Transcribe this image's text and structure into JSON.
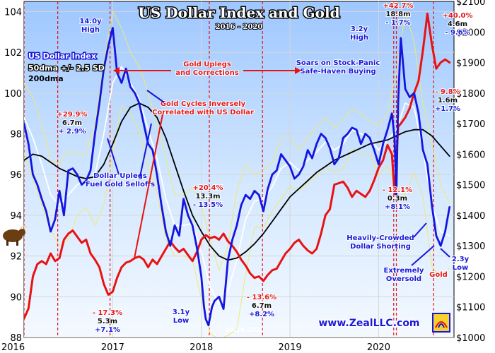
{
  "chart_data": {
    "type": "line",
    "title": "US Dollar Index and Gold",
    "subtitle": "2016 - 2020",
    "x_ticks": [
      "2016",
      "2017",
      "2018",
      "2019",
      "2020"
    ],
    "y_left_ticks": [
      "88",
      "90",
      "92",
      "94",
      "96",
      "98",
      "100",
      "102",
      "104"
    ],
    "y_right_ticks": [
      "$1000",
      "$1100",
      "$1200",
      "$1300",
      "$1400",
      "$1500",
      "$1600",
      "$1700",
      "$1800",
      "$1900",
      "$2000",
      "$2100"
    ],
    "ylim_left": [
      88,
      104.5
    ],
    "ylim_right": [
      1000,
      2100
    ],
    "xlim": [
      2016.0,
      2020.85
    ],
    "legend": {
      "label": "US Dollar Index",
      "band": "50dma +/- 2.5 SD",
      "ma": "200dma"
    },
    "series": [
      {
        "name": "US Dollar Index",
        "axis": "left",
        "color": "#1515e0",
        "x": [
          2016.0,
          2016.05,
          2016.1,
          2016.15,
          2016.2,
          2016.25,
          2016.3,
          2016.35,
          2016.4,
          2016.45,
          2016.5,
          2016.55,
          2016.6,
          2016.65,
          2016.7,
          2016.75,
          2016.8,
          2016.85,
          2016.9,
          2016.95,
          2017.0,
          2017.05,
          2017.1,
          2017.15,
          2017.2,
          2017.25,
          2017.3,
          2017.35,
          2017.4,
          2017.45,
          2017.5,
          2017.55,
          2017.6,
          2017.65,
          2017.7,
          2017.75,
          2017.8,
          2017.85,
          2017.9,
          2017.95,
          2018.0,
          2018.03,
          2018.05,
          2018.08,
          2018.12,
          2018.15,
          2018.2,
          2018.25,
          2018.3,
          2018.35,
          2018.4,
          2018.45,
          2018.5,
          2018.55,
          2018.6,
          2018.65,
          2018.7,
          2018.75,
          2018.8,
          2018.85,
          2018.9,
          2018.95,
          2019.0,
          2019.05,
          2019.1,
          2019.15,
          2019.2,
          2019.25,
          2019.3,
          2019.35,
          2019.4,
          2019.45,
          2019.5,
          2019.55,
          2019.6,
          2019.65,
          2019.7,
          2019.75,
          2019.8,
          2019.85,
          2019.9,
          2019.95,
          2020.0,
          2020.05,
          2020.1,
          2020.15,
          2020.18,
          2020.2,
          2020.22,
          2020.25,
          2020.3,
          2020.35,
          2020.4,
          2020.45,
          2020.5,
          2020.55,
          2020.6,
          2020.65,
          2020.7,
          2020.75,
          2020.8
        ],
        "y": [
          98.5,
          97.5,
          96.0,
          95.5,
          94.8,
          94.2,
          93.2,
          93.8,
          95.2,
          94.0,
          96.2,
          96.3,
          96.0,
          95.5,
          95.7,
          96.2,
          98.0,
          99.5,
          101.2,
          102.3,
          103.2,
          101.0,
          100.5,
          101.2,
          100.3,
          100.0,
          99.5,
          98.5,
          97.5,
          97.2,
          96.0,
          94.5,
          93.2,
          92.5,
          93.5,
          93.0,
          94.8,
          94.0,
          93.5,
          92.4,
          91.0,
          89.5,
          88.9,
          88.6,
          89.5,
          89.8,
          90.0,
          89.4,
          91.8,
          92.8,
          93.5,
          94.5,
          95.0,
          94.8,
          95.2,
          95.0,
          94.2,
          95.3,
          96.0,
          96.2,
          97.0,
          96.7,
          96.4,
          95.8,
          96.0,
          96.4,
          97.2,
          96.8,
          97.5,
          98.0,
          97.8,
          97.3,
          96.5,
          96.8,
          97.8,
          98.0,
          98.3,
          98.2,
          97.5,
          98.0,
          97.8,
          97.2,
          96.5,
          97.5,
          98.2,
          99.0,
          97.8,
          95.0,
          99.5,
          102.7,
          100.2,
          99.8,
          100.0,
          99.0,
          97.2,
          96.5,
          94.5,
          93.0,
          92.5,
          93.2,
          94.4
        ]
      },
      {
        "name": "Gold",
        "axis": "right",
        "color": "#e81212",
        "x": [
          2016.0,
          2016.05,
          2016.1,
          2016.15,
          2016.2,
          2016.25,
          2016.3,
          2016.35,
          2016.4,
          2016.45,
          2016.5,
          2016.55,
          2016.6,
          2016.65,
          2016.7,
          2016.75,
          2016.8,
          2016.85,
          2016.9,
          2016.95,
          2017.0,
          2017.05,
          2017.1,
          2017.15,
          2017.2,
          2017.25,
          2017.3,
          2017.35,
          2017.4,
          2017.45,
          2017.5,
          2017.55,
          2017.6,
          2017.65,
          2017.7,
          2017.75,
          2017.8,
          2017.85,
          2017.9,
          2017.95,
          2018.0,
          2018.05,
          2018.1,
          2018.15,
          2018.2,
          2018.25,
          2018.3,
          2018.35,
          2018.4,
          2018.45,
          2018.5,
          2018.55,
          2018.6,
          2018.65,
          2018.7,
          2018.75,
          2018.8,
          2018.85,
          2018.9,
          2018.95,
          2019.0,
          2019.05,
          2019.1,
          2019.15,
          2019.2,
          2019.25,
          2019.3,
          2019.35,
          2019.4,
          2019.45,
          2019.5,
          2019.55,
          2019.6,
          2019.65,
          2019.7,
          2019.75,
          2019.8,
          2019.85,
          2019.9,
          2019.95,
          2020.0,
          2020.05,
          2020.1,
          2020.15,
          2020.18,
          2020.2,
          2020.22,
          2020.25,
          2020.3,
          2020.35,
          2020.4,
          2020.45,
          2020.5,
          2020.55,
          2020.6,
          2020.65,
          2020.7,
          2020.75,
          2020.8
        ],
        "y": [
          1062,
          1095,
          1200,
          1240,
          1250,
          1240,
          1275,
          1250,
          1260,
          1320,
          1340,
          1350,
          1330,
          1310,
          1320,
          1275,
          1255,
          1230,
          1175,
          1140,
          1150,
          1195,
          1230,
          1245,
          1250,
          1260,
          1265,
          1255,
          1230,
          1255,
          1240,
          1265,
          1290,
          1315,
          1295,
          1280,
          1290,
          1270,
          1250,
          1280,
          1320,
          1335,
          1325,
          1330,
          1320,
          1340,
          1315,
          1300,
          1280,
          1255,
          1235,
          1210,
          1195,
          1200,
          1185,
          1205,
          1220,
          1225,
          1250,
          1275,
          1290,
          1310,
          1320,
          1300,
          1285,
          1275,
          1290,
          1340,
          1400,
          1420,
          1500,
          1505,
          1510,
          1490,
          1460,
          1480,
          1470,
          1460,
          1480,
          1515,
          1555,
          1580,
          1630,
          1600,
          1470,
          1580,
          1690,
          1700,
          1720,
          1750,
          1800,
          1840,
          1940,
          2060,
          1960,
          1880,
          1900,
          1910,
          1900
        ]
      },
      {
        "name": "50dma",
        "axis": "left",
        "color": "#ffffff",
        "x": [
          2016.0,
          2016.1,
          2016.2,
          2016.3,
          2016.4,
          2016.5,
          2016.6,
          2016.7,
          2016.8,
          2016.9,
          2017.0,
          2017.1,
          2017.2,
          2017.3,
          2017.4,
          2017.5,
          2017.6,
          2017.7,
          2017.8,
          2017.9,
          2018.0,
          2018.1,
          2018.2,
          2018.3,
          2018.4,
          2018.5,
          2018.6,
          2018.7,
          2018.8,
          2018.9,
          2019.0,
          2019.1,
          2019.2,
          2019.3,
          2019.4,
          2019.5,
          2019.6,
          2019.7,
          2019.8,
          2019.9,
          2020.0,
          2020.1,
          2020.2,
          2020.3,
          2020.4,
          2020.5,
          2020.6,
          2020.7,
          2020.8
        ],
        "y": [
          98.8,
          97.8,
          96.5,
          95.0,
          94.5,
          95.0,
          95.5,
          95.7,
          96.0,
          98.0,
          100.5,
          101.3,
          100.5,
          99.7,
          98.2,
          96.8,
          94.8,
          93.5,
          93.5,
          93.6,
          92.2,
          90.5,
          89.6,
          90.3,
          91.8,
          93.8,
          94.7,
          94.8,
          95.4,
          96.3,
          96.6,
          96.2,
          96.7,
          97.1,
          97.6,
          97.2,
          97.5,
          98.2,
          98.0,
          97.8,
          97.2,
          97.7,
          98.2,
          99.5,
          99.3,
          97.2,
          94.5,
          93.2,
          93.0
        ]
      },
      {
        "name": "200dma",
        "axis": "left",
        "color": "#000000",
        "x": [
          2016.0,
          2016.1,
          2016.2,
          2016.3,
          2016.4,
          2016.5,
          2016.6,
          2016.7,
          2016.8,
          2016.9,
          2017.0,
          2017.1,
          2017.2,
          2017.3,
          2017.4,
          2017.5,
          2017.6,
          2017.7,
          2017.8,
          2017.9,
          2018.0,
          2018.1,
          2018.2,
          2018.3,
          2018.4,
          2018.5,
          2018.6,
          2018.7,
          2018.8,
          2018.9,
          2019.0,
          2019.1,
          2019.2,
          2019.3,
          2019.4,
          2019.5,
          2019.6,
          2019.7,
          2019.8,
          2019.9,
          2020.0,
          2020.1,
          2020.2,
          2020.3,
          2020.4,
          2020.5,
          2020.6,
          2020.7,
          2020.8
        ],
        "y": [
          96.7,
          97.0,
          96.9,
          96.6,
          96.3,
          96.1,
          95.9,
          95.8,
          95.9,
          96.5,
          97.5,
          98.6,
          99.3,
          99.5,
          99.3,
          98.8,
          97.8,
          96.5,
          95.2,
          94.0,
          93.2,
          92.5,
          92.0,
          91.8,
          91.9,
          92.2,
          92.6,
          93.1,
          93.7,
          94.3,
          94.9,
          95.3,
          95.7,
          96.1,
          96.4,
          96.7,
          96.9,
          97.1,
          97.3,
          97.5,
          97.6,
          97.7,
          97.9,
          98.1,
          98.2,
          98.2,
          97.9,
          97.4,
          96.9
        ]
      },
      {
        "name": "Upper band",
        "axis": "left",
        "color": "#f0e872",
        "x": [
          2016.0,
          2016.1,
          2016.2,
          2016.3,
          2016.4,
          2016.5,
          2016.6,
          2016.7,
          2016.8,
          2016.9,
          2017.0,
          2017.1,
          2017.2,
          2017.3,
          2017.4,
          2017.5,
          2017.6,
          2017.7,
          2017.8,
          2017.9,
          2018.0,
          2018.1,
          2018.2,
          2018.3,
          2018.4,
          2018.5,
          2018.6,
          2018.7,
          2018.8,
          2018.9,
          2019.0,
          2019.1,
          2019.2,
          2019.3,
          2019.4,
          2019.5,
          2019.6,
          2019.7,
          2019.8,
          2019.9,
          2020.0,
          2020.1,
          2020.2,
          2020.3,
          2020.4,
          2020.5,
          2020.6,
          2020.7,
          2020.8
        ],
        "y": [
          100.5,
          99.8,
          98.5,
          96.7,
          96.5,
          97.2,
          97.0,
          97.0,
          98.5,
          101.5,
          104.0,
          103.2,
          102.0,
          101.3,
          100.0,
          98.5,
          96.8,
          95.0,
          95.0,
          95.4,
          94.5,
          92.8,
          91.3,
          92.5,
          95.2,
          96.5,
          96.0,
          96.2,
          96.6,
          97.8,
          97.8,
          97.2,
          97.8,
          98.3,
          98.8,
          98.3,
          98.7,
          99.2,
          99.0,
          98.6,
          98.4,
          99.0,
          101.0,
          104.0,
          102.5,
          99.5,
          97.5,
          95.5,
          94.6
        ]
      },
      {
        "name": "Lower band",
        "axis": "left",
        "color": "#f0e872",
        "x": [
          2016.0,
          2016.1,
          2016.2,
          2016.3,
          2016.4,
          2016.5,
          2016.6,
          2016.7,
          2016.8,
          2016.9,
          2017.0,
          2017.1,
          2017.2,
          2017.3,
          2017.4,
          2017.5,
          2017.6,
          2017.7,
          2017.8,
          2017.9,
          2018.0,
          2018.1,
          2018.2,
          2018.3,
          2018.4,
          2018.5,
          2018.6,
          2018.7,
          2018.8,
          2018.9,
          2019.0,
          2019.1,
          2019.2,
          2019.3,
          2019.4,
          2019.5,
          2019.6,
          2019.7,
          2019.8,
          2019.9,
          2020.0,
          2020.1,
          2020.2,
          2020.3,
          2020.4,
          2020.5,
          2020.6,
          2020.7,
          2020.8
        ],
        "y": [
          97.0,
          95.8,
          94.5,
          93.3,
          92.5,
          92.8,
          94.0,
          94.4,
          93.5,
          94.5,
          97.0,
          99.4,
          99.0,
          98.1,
          96.4,
          95.1,
          92.8,
          92.0,
          92.0,
          91.8,
          89.9,
          88.2,
          87.9,
          88.1,
          88.4,
          91.1,
          93.4,
          93.4,
          94.2,
          94.8,
          95.4,
          95.2,
          95.6,
          95.9,
          96.4,
          96.1,
          96.3,
          97.2,
          97.0,
          97.0,
          96.0,
          96.4,
          95.4,
          95.0,
          96.1,
          94.9,
          91.5,
          90.9,
          91.4
        ]
      }
    ],
    "vlines": [
      2016.0,
      2016.38,
      2016.97,
      2018.09,
      2018.69,
      2020.17,
      2020.2,
      2020.62
    ],
    "annotations": [
      {
        "id": "gold-uplegs",
        "text": [
          "Gold Uplegs",
          "and Corrections"
        ],
        "color": "red"
      },
      {
        "id": "gold-cycles",
        "text": [
          "Gold Cycles Inversely",
          "Correlated with US Dollar"
        ],
        "color": "red"
      },
      {
        "id": "dollar-uplegs",
        "text": [
          "Dollar Uplegs",
          "Fuel Gold Selloffs"
        ],
        "color": "blue"
      },
      {
        "id": "high-2016",
        "text": [
          "14.0y",
          "High"
        ],
        "color": "blue"
      },
      {
        "id": "up-299",
        "text": [
          "+29.9%",
          "6.7m",
          "+ 2.9%"
        ],
        "color": "mixed"
      },
      {
        "id": "down-173",
        "text": [
          "- 17.3%",
          "5.3m",
          "+7.1%"
        ],
        "color": "mixed"
      },
      {
        "id": "up-204",
        "text": [
          "+20.4%",
          "13.3m",
          "- 13.5%"
        ],
        "color": "mixed"
      },
      {
        "id": "low-31y",
        "text": [
          "3.1y",
          "Low"
        ],
        "color": "blue"
      },
      {
        "id": "down-136",
        "text": [
          "- 13.6%",
          "6.7m",
          "+8.2%"
        ],
        "color": "mixed"
      },
      {
        "id": "date-stamp",
        "text": [
          "10.14.2020"
        ],
        "color": "white"
      },
      {
        "id": "up-427",
        "text": [
          "+42.7%",
          "18.8m",
          "- 1.7%"
        ],
        "color": "mixed"
      },
      {
        "id": "high-32y",
        "text": [
          "3.2y",
          "High"
        ],
        "color": "blue"
      },
      {
        "id": "soars",
        "text": [
          "Soars on Stock-Panic",
          "Safe-Haven Buying"
        ],
        "color": "blue"
      },
      {
        "id": "down-121",
        "text": [
          "- 12.1%",
          "0.3m",
          "+8.1%"
        ],
        "color": "mixed"
      },
      {
        "id": "heavily-crowded",
        "text": [
          "Heavily-Crowded",
          "Dollar Shorting"
        ],
        "color": "blue"
      },
      {
        "id": "extremely-oversold",
        "text": [
          "Extremely",
          "Oversold"
        ],
        "color": "blue"
      },
      {
        "id": "gold-label",
        "text": [
          "Gold"
        ],
        "color": "red"
      },
      {
        "id": "low-23y",
        "text": [
          "2.3y",
          "Low"
        ],
        "color": "blue"
      },
      {
        "id": "up-400",
        "text": [
          "+40.0%",
          "4.6m",
          "- 9.6%"
        ],
        "color": "mixed"
      },
      {
        "id": "down-98",
        "text": [
          "- 9.8%",
          "1.6m",
          "+1.7%"
        ],
        "color": "mixed"
      }
    ],
    "watermark": "www.ZealLLC.com",
    "grid": true
  },
  "colors": {
    "dollar": "#1515e0",
    "gold": "#e81212",
    "band": "#f0e872",
    "grid": "#d6d6d6",
    "watermark": "#1a1adb"
  }
}
